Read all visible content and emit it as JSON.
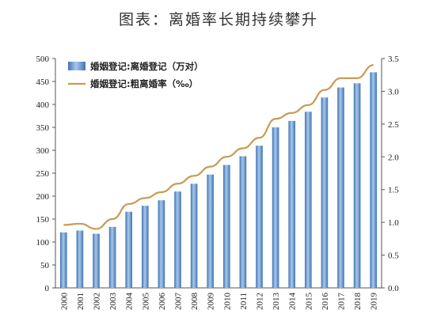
{
  "chart_data": {
    "type": "bar",
    "title": "图表：离婚率长期持续攀升",
    "categories": [
      "2000",
      "2001",
      "2002",
      "2003",
      "2004",
      "2005",
      "2006",
      "2007",
      "2008",
      "2009",
      "2010",
      "2011",
      "2012",
      "2013",
      "2014",
      "2015",
      "2016",
      "2017",
      "2018",
      "2019"
    ],
    "series": [
      {
        "name": "婚姻登记:离婚登记（万对）",
        "type": "bar",
        "axis": "left",
        "color": "#5b8fc9",
        "values": [
          121,
          125,
          118,
          133,
          166,
          179,
          191,
          210,
          227,
          247,
          268,
          287,
          310,
          350,
          364,
          384,
          415,
          437,
          446,
          470
        ]
      },
      {
        "name": "婚姻登记:粗离婚率（‰）",
        "type": "line",
        "axis": "right",
        "color": "#c89b54",
        "values": [
          0.96,
          0.98,
          0.9,
          1.05,
          1.28,
          1.37,
          1.46,
          1.59,
          1.71,
          1.85,
          2.0,
          2.13,
          2.29,
          2.58,
          2.67,
          2.79,
          3.02,
          3.2,
          3.2,
          3.4
        ]
      }
    ],
    "left_axis": {
      "ylim": [
        0,
        500
      ],
      "ticks": [
        "0",
        "50",
        "100",
        "150",
        "200",
        "250",
        "300",
        "350",
        "400",
        "450",
        "500"
      ]
    },
    "right_axis": {
      "ylim": [
        0,
        3.5
      ],
      "ticks": [
        "0.0",
        "0.5",
        "1.0",
        "1.5",
        "2.0",
        "2.5",
        "3.0",
        "3.5"
      ]
    },
    "legend_position": "top-left",
    "grid": false
  }
}
